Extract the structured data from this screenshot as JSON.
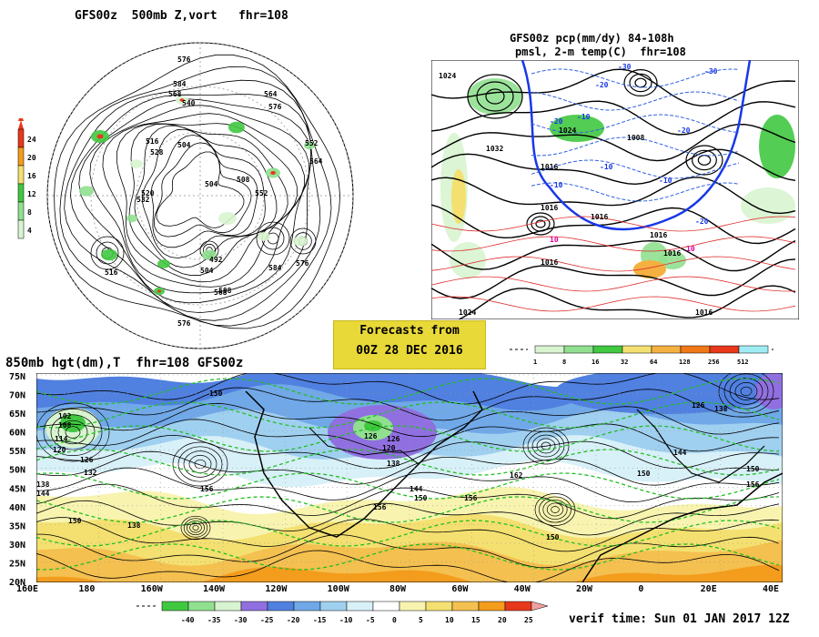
{
  "panel_500": {
    "title": "GFS00z  500mb Z,vort   fhr=108",
    "vort_scale": [
      "24",
      "20",
      "16",
      "12",
      "8",
      "4"
    ],
    "vort_colors": [
      "#e8381c",
      "#f49c1c",
      "#f4e070",
      "#40c840",
      "#90e090",
      "#d8f4d0"
    ],
    "contour_labels": [
      "576",
      "584",
      "568",
      "540",
      "564",
      "576",
      "504",
      "516",
      "528",
      "552",
      "564",
      "508",
      "520",
      "532",
      "492",
      "504",
      "584",
      "576",
      "576",
      "588",
      "516",
      "504",
      "552",
      "568"
    ]
  },
  "panel_sfc": {
    "title_line1": "GFS00z pcp(mm/dy) 84-108h",
    "title_line2": "pmsl, 2-m temp(C)  fhr=108",
    "pressure_labels": [
      "1024",
      "1032",
      "1024",
      "1008",
      "1016",
      "1016",
      "1016",
      "1016",
      "1016",
      "1024",
      "1016",
      "1016"
    ],
    "temp_labels": [
      "-30",
      "-20",
      "-10",
      "-20",
      "-10",
      "-20",
      "-10",
      "-10",
      "-20",
      "-30",
      "10",
      "10"
    ]
  },
  "pcp_scale": {
    "ticks": [
      "1",
      "8",
      "16",
      "32",
      "64",
      "128",
      "256",
      "512"
    ],
    "colors": [
      "#d8f4d0",
      "#90e090",
      "#40c840",
      "#f4e070",
      "#f4b040",
      "#f07818",
      "#e8381c",
      "#a0ecf4"
    ]
  },
  "forecast_box": {
    "line1": "Forecasts from",
    "line2": "00Z 28 DEC 2016",
    "bg": "#e8d838"
  },
  "panel_850": {
    "title": "850mb hgt(dm),T  fhr=108 GFS00z",
    "lat_labels": [
      "75N",
      "70N",
      "65N",
      "60N",
      "55N",
      "50N",
      "45N",
      "40N",
      "35N",
      "30N",
      "25N",
      "20N"
    ],
    "lon_labels": [
      "160E",
      "180",
      "160W",
      "140W",
      "120W",
      "100W",
      "80W",
      "60W",
      "40W",
      "20W",
      "0",
      "20E",
      "40E"
    ],
    "height_labels": [
      "102",
      "108",
      "114",
      "120",
      "126",
      "132",
      "138",
      "144",
      "150",
      "156",
      "138",
      "150",
      "126",
      "126",
      "120",
      "138",
      "144",
      "150",
      "156",
      "162",
      "150",
      "150",
      "156",
      "144",
      "138",
      "126",
      "150",
      "156"
    ]
  },
  "temp_scale": {
    "ticks": [
      "-40",
      "-35",
      "-30",
      "-25",
      "-20",
      "-15",
      "-10",
      "-5",
      "0",
      "5",
      "10",
      "15",
      "20",
      "25"
    ],
    "colors": [
      "#40c840",
      "#90e090",
      "#d8f4d0",
      "#9070e0",
      "#5080e0",
      "#70a8e8",
      "#a0d0f0",
      "#d8f0f8",
      "#ffffff",
      "#f8f4b0",
      "#f4e070",
      "#f4c050",
      "#f49c1c",
      "#e8381c"
    ]
  },
  "verif_time": "verif time: Sun 01 JAN 2017 12Z"
}
